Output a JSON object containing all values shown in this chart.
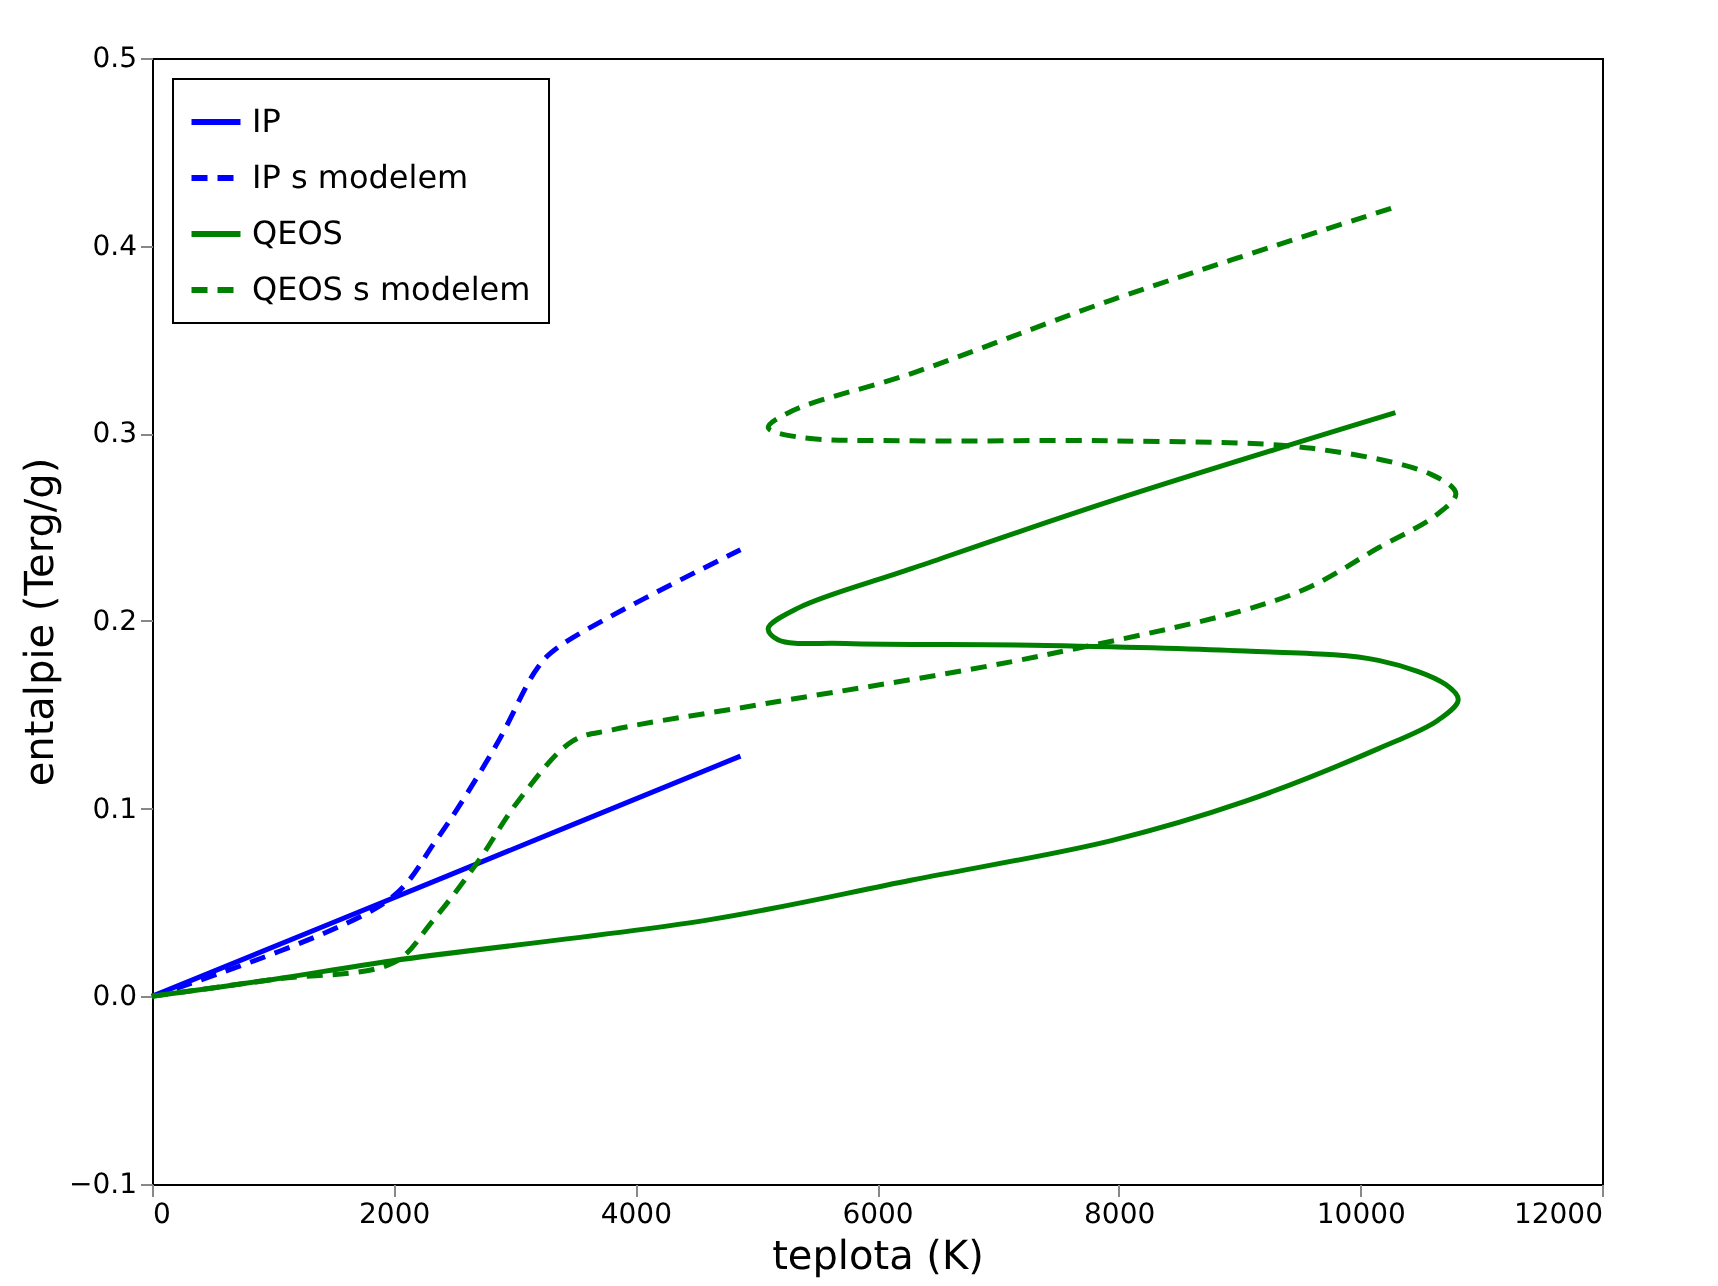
{
  "chart_data": {
    "type": "line",
    "xlabel": "teplota (K)",
    "ylabel": "entalpie (Terg/g)",
    "xlim": [
      0,
      12000
    ],
    "ylim": [
      -0.1,
      0.5
    ],
    "xticks": [
      0,
      2000,
      4000,
      6000,
      8000,
      10000,
      12000
    ],
    "yticks": [
      -0.1,
      {
        "value": 0,
        "label": "0.0"
      },
      0.1,
      0.2,
      0.3,
      0.4,
      0.5
    ],
    "grid": false,
    "legend": "top left",
    "marker": "none",
    "series": [
      {
        "name": "IP",
        "color": "#0000ff",
        "line_style": "solid",
        "x": [
          0,
          2400,
          4870
        ],
        "values": [
          0,
          0.063,
          0.128
        ]
      },
      {
        "name": "IP s modelem",
        "color": "#0000ff",
        "line_style": "dashed",
        "x": [
          0,
          1950,
          2350,
          2850,
          3190,
          3360,
          4870
        ],
        "values": [
          0,
          0.051,
          0.083,
          0.134,
          0.175,
          0.186,
          0.238
        ]
      },
      {
        "name": "QEOS",
        "color": "#008000",
        "line_style": "solid",
        "x": [
          0,
          1000,
          1990,
          4630,
          6290,
          7940,
          9050,
          10150,
          10640,
          10810,
          10710,
          10150,
          9050,
          7400,
          5740,
          5180,
          5100,
          5350,
          6290,
          7940,
          10290
        ],
        "values": [
          0,
          0.009,
          0.019,
          0.041,
          0.062,
          0.083,
          0.104,
          0.132,
          0.147,
          0.158,
          0.166,
          0.179,
          0.184,
          0.187,
          0.188,
          0.19,
          0.196,
          0.207,
          0.228,
          0.264,
          0.311
        ]
      },
      {
        "name": "QEOS s modelem",
        "color": "#008000",
        "line_style": "dashed",
        "x": [
          0,
          1000,
          2000,
          2320,
          2700,
          3030,
          3480,
          3810,
          5080,
          7400,
          9430,
          10150,
          10640,
          10790,
          10590,
          9600,
          7940,
          6290,
          5350,
          5100,
          5300,
          6290,
          7940,
          10260
        ],
        "values": [
          0,
          0.009,
          0.018,
          0.04,
          0.072,
          0.104,
          0.136,
          0.142,
          0.156,
          0.182,
          0.214,
          0.239,
          0.257,
          0.268,
          0.278,
          0.292,
          0.296,
          0.296,
          0.298,
          0.303,
          0.312,
          0.332,
          0.371,
          0.42
        ]
      }
    ]
  }
}
